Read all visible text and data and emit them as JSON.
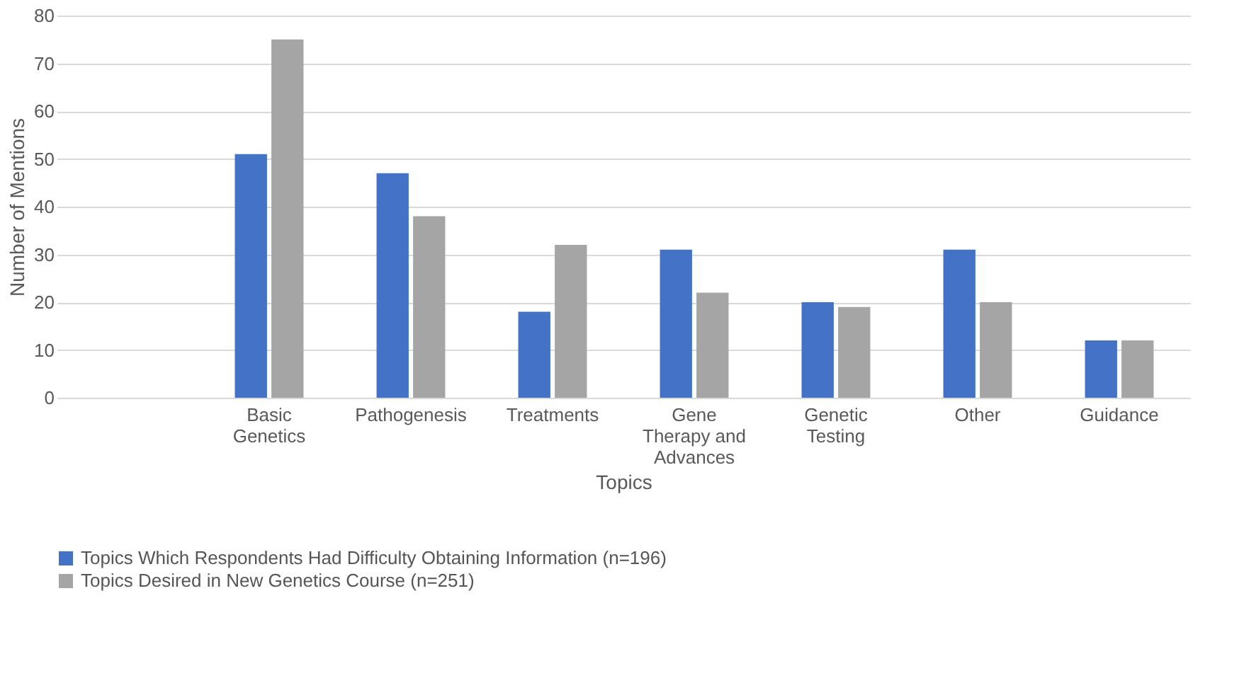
{
  "chart_data": {
    "type": "bar",
    "xlabel": "Topics",
    "ylabel": "Number of Mentions",
    "categories": [
      null,
      "Basic\nGenetics",
      "Pathogenesis",
      "Treatments",
      "Gene\nTherapy and\nAdvances",
      "Genetic\nTesting",
      "Other",
      "Guidance"
    ],
    "series": [
      {
        "name": "Topics Which Respondents Had Difficulty Obtaining Information (n=196)",
        "color": "#4472c4",
        "values": [
          null,
          51,
          47,
          18,
          31,
          20,
          31,
          12
        ]
      },
      {
        "name": "Topics Desired in New Genetics Course (n=251)",
        "color": "#a5a5a5",
        "values": [
          null,
          75,
          38,
          32,
          22,
          19,
          20,
          12
        ]
      }
    ],
    "ylim": [
      0,
      80
    ],
    "yticks": [
      0,
      10,
      20,
      30,
      40,
      50,
      60,
      70,
      80
    ],
    "grid": "y",
    "legend": "bottom"
  }
}
